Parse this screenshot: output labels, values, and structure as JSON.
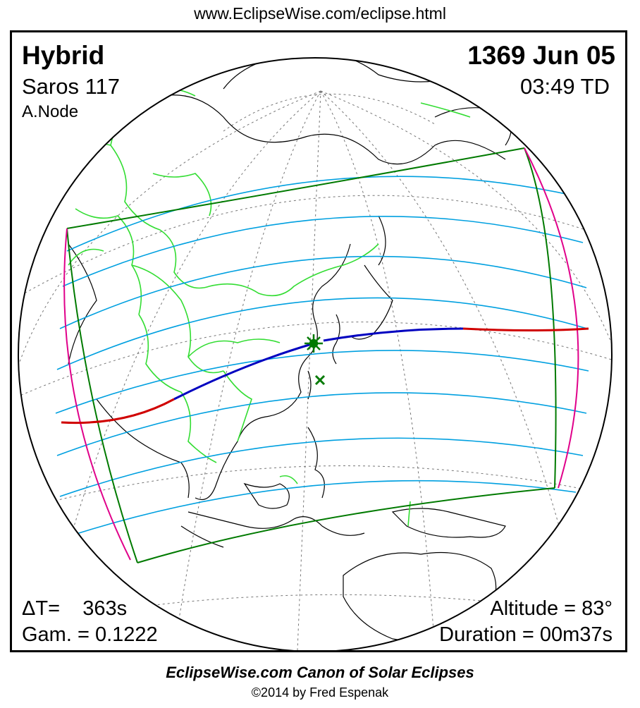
{
  "header": {
    "url": "www.EclipseWise.com/eclipse.html"
  },
  "eclipse": {
    "type": "Hybrid",
    "saros": "Saros 117",
    "node": "A.Node",
    "date": "1369 Jun 05",
    "time": "03:49 TD"
  },
  "stats": {
    "delta_t": "ΔT=    363s",
    "gamma": "Gam. = 0.1222",
    "altitude": "Altitude = 83°",
    "duration": "Duration = 00m37s"
  },
  "footer": {
    "canon": "EclipseWise.com Canon of Solar Eclipses",
    "copyright": "©2014 by Fred Espenak"
  },
  "colors": {
    "limits": "#007a00",
    "penumbral": "#00a0e0",
    "central_total": "#0000c0",
    "central_annular": "#d00000",
    "rise_set": "#e0008a",
    "borders": "#33dd33"
  }
}
